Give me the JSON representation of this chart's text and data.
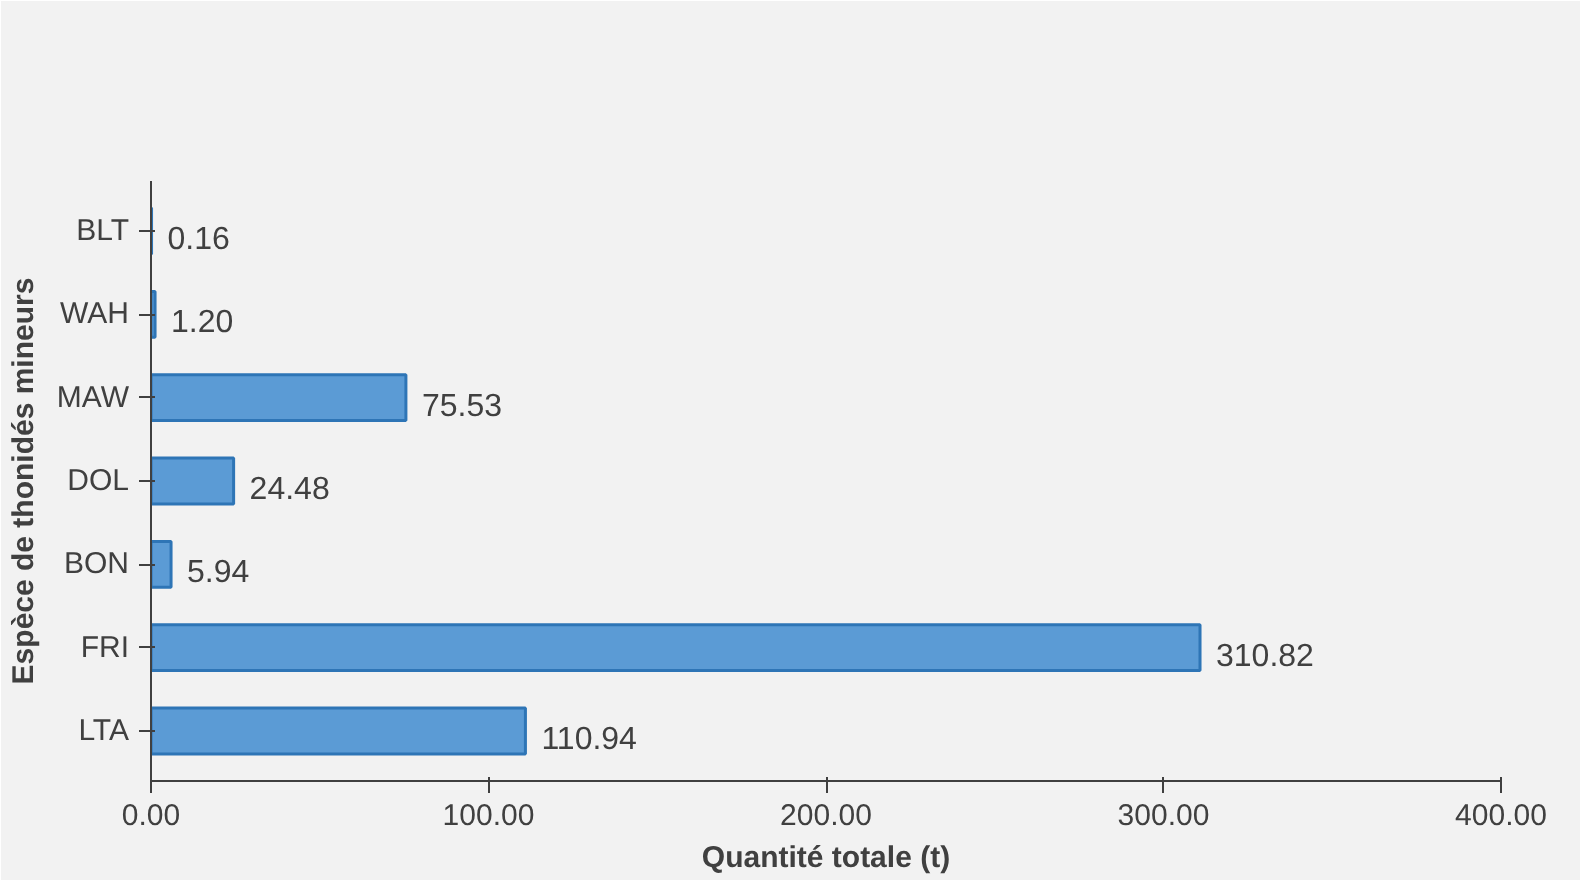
{
  "chart_data": {
    "type": "bar",
    "orientation": "horizontal",
    "xlabel": "Quantité totale (t)",
    "ylabel": "Espèce de thonidés mineurs",
    "categories": [
      "BLT",
      "WAH",
      "MAW",
      "DOL",
      "BON",
      "FRI",
      "LTA"
    ],
    "values": [
      0.16,
      1.2,
      75.53,
      24.48,
      5.94,
      310.82,
      110.94
    ],
    "value_labels": [
      "0.16",
      "1.20",
      "75.53",
      "24.48",
      "5.94",
      "310.82",
      "110.94"
    ],
    "color": "#5b9bd5",
    "xlim": [
      0,
      400
    ],
    "xticks": [
      {
        "value": 0,
        "label": "0.00"
      },
      {
        "value": 100,
        "label": "100.00"
      },
      {
        "value": 200,
        "label": "200.00"
      },
      {
        "value": 300,
        "label": "300.00"
      },
      {
        "value": 400,
        "label": "400.00"
      }
    ],
    "grid": false
  }
}
